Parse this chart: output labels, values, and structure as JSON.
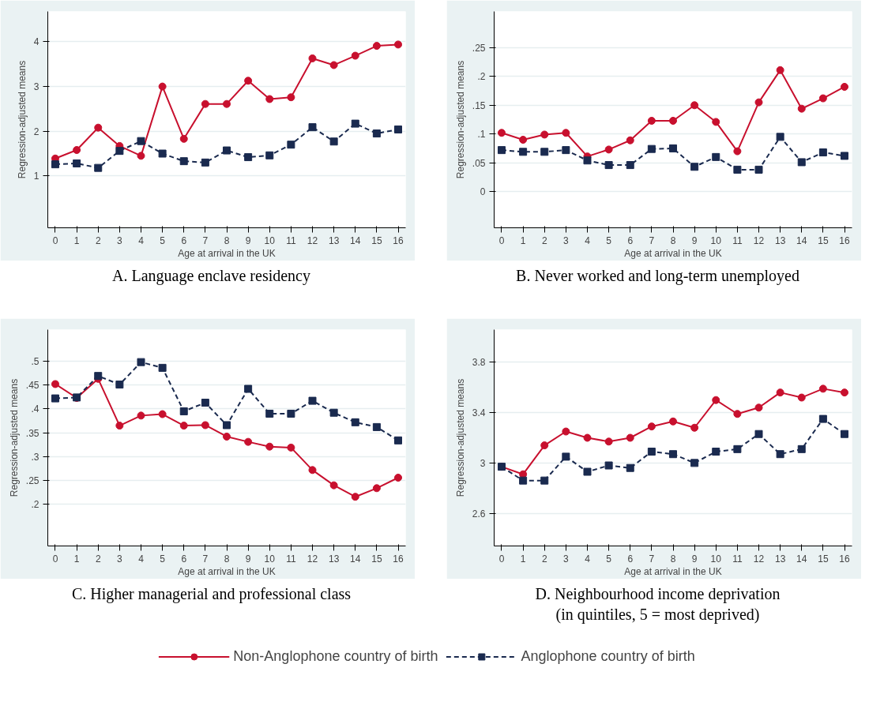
{
  "chart_data": [
    {
      "type": "line",
      "title": "A. Language enclave residency",
      "xlabel": "Age at arrival in the UK",
      "ylabel": "Regression-adjusted means",
      "x": [
        0,
        1,
        2,
        3,
        4,
        5,
        6,
        7,
        8,
        9,
        10,
        11,
        12,
        13,
        14,
        15,
        16
      ],
      "xlim": [
        -0.35,
        16.35
      ],
      "xticks": [
        0,
        1,
        2,
        3,
        4,
        5,
        6,
        7,
        8,
        9,
        10,
        11,
        12,
        13,
        14,
        15,
        16
      ],
      "ylim": [
        -0.16,
        4.68
      ],
      "yticks": [
        1,
        2,
        3,
        4
      ],
      "grid": "y",
      "legend": "bottom",
      "series": [
        {
          "name": "Non-Anglophone country of birth",
          "color": "#c8102e",
          "marker": "circle",
          "line_style": "solid",
          "values": [
            1.39,
            1.58,
            2.08,
            1.67,
            1.45,
            3.0,
            1.83,
            2.61,
            2.61,
            3.13,
            2.72,
            2.76,
            3.63,
            3.48,
            3.69,
            3.91,
            3.94
          ]
        },
        {
          "name": "Anglophone country of birth",
          "color": "#1a2a4f",
          "marker": "square",
          "line_style": "dashed",
          "values": [
            1.26,
            1.28,
            1.18,
            1.56,
            1.78,
            1.5,
            1.33,
            1.3,
            1.57,
            1.42,
            1.46,
            1.7,
            2.09,
            1.77,
            2.17,
            1.95,
            2.04
          ]
        }
      ]
    },
    {
      "type": "line",
      "title": "B. Never worked and long-term unemployed",
      "xlabel": "Age at arrival in the UK",
      "ylabel": "Regression-adjusted means",
      "x": [
        0,
        1,
        2,
        3,
        4,
        5,
        6,
        7,
        8,
        9,
        10,
        11,
        12,
        13,
        14,
        15,
        16
      ],
      "xlim": [
        -0.35,
        16.35
      ],
      "xticks": [
        0,
        1,
        2,
        3,
        4,
        5,
        6,
        7,
        8,
        9,
        10,
        11,
        12,
        13,
        14,
        15,
        16
      ],
      "ylim": [
        -0.063,
        0.313
      ],
      "yticks": [
        0,
        {
          "value": 0.05,
          "label": ".05"
        },
        {
          "value": 0.1,
          "label": ".1"
        },
        {
          "value": 0.15,
          "label": ".15"
        },
        {
          "value": 0.2,
          "label": ".2"
        },
        {
          "value": 0.25,
          "label": ".25"
        }
      ],
      "grid": "y",
      "series": [
        {
          "color": "#c8102e",
          "marker": "circle",
          "line_style": "solid",
          "values": [
            0.102,
            0.09,
            0.099,
            0.102,
            0.061,
            0.073,
            0.089,
            0.123,
            0.123,
            0.15,
            0.121,
            0.07,
            0.155,
            0.211,
            0.144,
            0.162,
            0.182
          ]
        },
        {
          "color": "#1a2a4f",
          "marker": "square",
          "line_style": "dashed",
          "values": [
            0.072,
            0.069,
            0.069,
            0.072,
            0.054,
            0.046,
            0.046,
            0.074,
            0.075,
            0.043,
            0.06,
            0.038,
            0.038,
            0.095,
            0.051,
            0.068,
            0.062
          ]
        }
      ]
    },
    {
      "type": "line",
      "title": "C. Higher managerial and professional class",
      "xlabel": "Age at arrival in the UK",
      "ylabel": "Regression-adjusted means",
      "x": [
        0,
        1,
        2,
        3,
        4,
        5,
        6,
        7,
        8,
        9,
        10,
        11,
        12,
        13,
        14,
        15,
        16
      ],
      "xlim": [
        -0.35,
        16.35
      ],
      "xticks": [
        0,
        1,
        2,
        3,
        4,
        5,
        6,
        7,
        8,
        9,
        10,
        11,
        12,
        13,
        14,
        15,
        16
      ],
      "ylim": [
        0.113,
        0.566
      ],
      "yticks": [
        {
          "value": 0.2,
          "label": ".2"
        },
        {
          "value": 0.25,
          "label": ".25"
        },
        {
          "value": 0.3,
          "label": ".3"
        },
        {
          "value": 0.35,
          "label": ".35"
        },
        {
          "value": 0.4,
          "label": ".4"
        },
        {
          "value": 0.45,
          "label": ".45"
        },
        {
          "value": 0.5,
          "label": ".5"
        }
      ],
      "grid": "y",
      "series": [
        {
          "color": "#c8102e",
          "marker": "circle",
          "line_style": "solid",
          "values": [
            0.452,
            0.423,
            0.463,
            0.365,
            0.386,
            0.389,
            0.365,
            0.366,
            0.342,
            0.331,
            0.321,
            0.319,
            0.272,
            0.24,
            0.216,
            0.234,
            0.256
          ]
        },
        {
          "color": "#1a2a4f",
          "marker": "square",
          "line_style": "dashed",
          "values": [
            0.422,
            0.424,
            0.469,
            0.451,
            0.498,
            0.486,
            0.395,
            0.413,
            0.366,
            0.442,
            0.39,
            0.39,
            0.417,
            0.392,
            0.372,
            0.362,
            0.334
          ]
        }
      ]
    },
    {
      "type": "line",
      "title": "D. Neighbourhood income deprivation",
      "subtitle": "(in quintiles, 5 = most deprived)",
      "xlabel": "Age at arrival in the UK",
      "ylabel": "Regression-adjusted means",
      "x": [
        0,
        1,
        2,
        3,
        4,
        5,
        6,
        7,
        8,
        9,
        10,
        11,
        12,
        13,
        14,
        15,
        16
      ],
      "xlim": [
        -0.35,
        16.35
      ],
      "xticks": [
        0,
        1,
        2,
        3,
        4,
        5,
        6,
        7,
        8,
        9,
        10,
        11,
        12,
        13,
        14,
        15,
        16
      ],
      "ylim": [
        2.34,
        4.06
      ],
      "yticks": [
        2.6,
        3,
        3.4,
        3.8
      ],
      "grid": "y",
      "series": [
        {
          "color": "#c8102e",
          "marker": "circle",
          "line_style": "solid",
          "values": [
            2.97,
            2.91,
            3.14,
            3.25,
            3.2,
            3.17,
            3.2,
            3.29,
            3.33,
            3.28,
            3.5,
            3.39,
            3.44,
            3.56,
            3.52,
            3.59,
            3.56
          ]
        },
        {
          "color": "#1a2a4f",
          "marker": "square",
          "line_style": "dashed",
          "values": [
            2.97,
            2.86,
            2.86,
            3.05,
            2.93,
            2.98,
            2.96,
            3.09,
            3.07,
            3.0,
            3.09,
            3.11,
            3.23,
            3.07,
            3.11,
            3.35,
            3.23
          ]
        }
      ]
    }
  ]
}
